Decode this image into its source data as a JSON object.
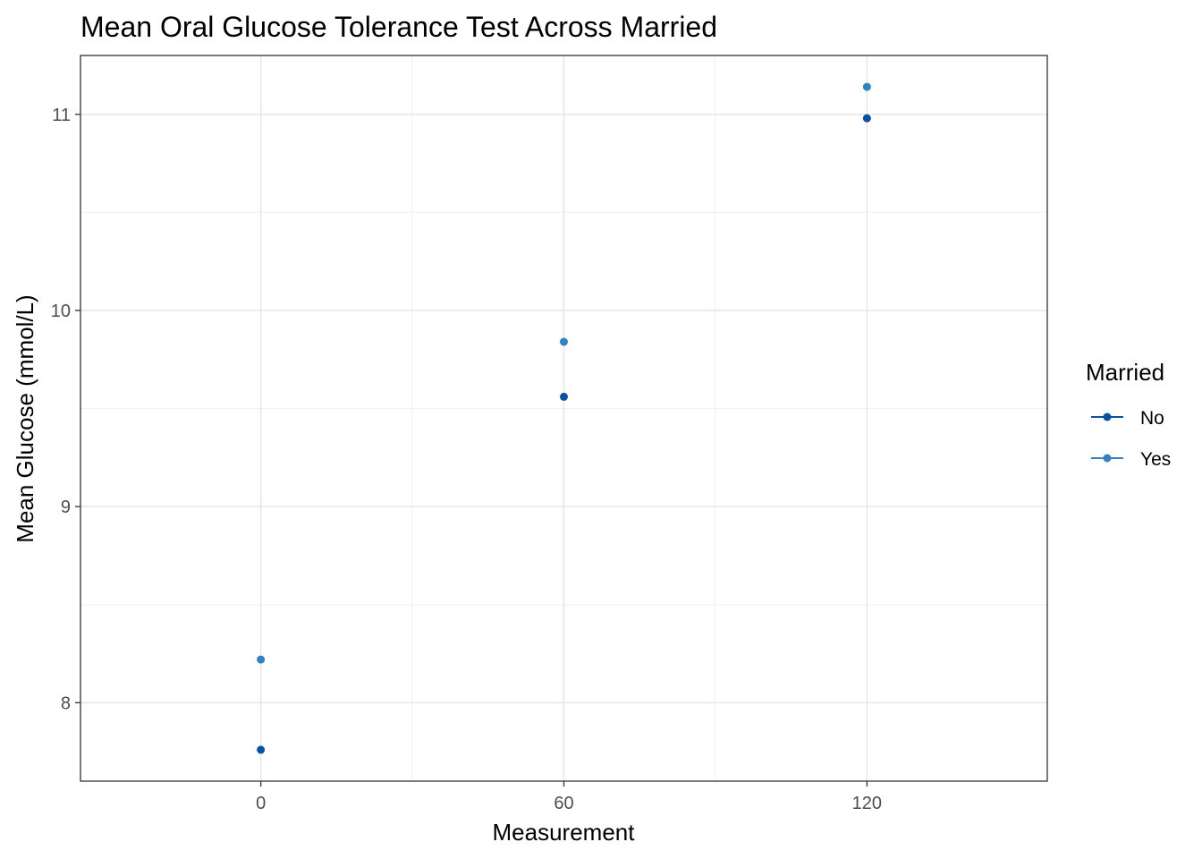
{
  "chart_data": {
    "type": "scatter",
    "title": "Mean Oral Glucose Tolerance Test Across Married",
    "xlabel": "Measurement",
    "ylabel": "Mean Glucose (mmol/L)",
    "x_ticks": [
      0,
      60,
      120
    ],
    "x_tick_labels": [
      "0",
      "60",
      "120"
    ],
    "y_ticks": [
      8,
      9,
      10,
      11
    ],
    "y_tick_labels": [
      "8",
      "9",
      "10",
      "11"
    ],
    "xlim": [
      -35.7,
      155.7
    ],
    "ylim": [
      7.6,
      11.3
    ],
    "grid": true,
    "legend": {
      "title": "Married",
      "position": "right"
    },
    "series": [
      {
        "name": "No",
        "color": "#08519c",
        "x": [
          0,
          60,
          120
        ],
        "y": [
          7.76,
          9.56,
          10.98
        ]
      },
      {
        "name": "Yes",
        "color": "#3182bd",
        "x": [
          0,
          60,
          120
        ],
        "y": [
          8.22,
          9.84,
          11.14
        ]
      }
    ]
  }
}
